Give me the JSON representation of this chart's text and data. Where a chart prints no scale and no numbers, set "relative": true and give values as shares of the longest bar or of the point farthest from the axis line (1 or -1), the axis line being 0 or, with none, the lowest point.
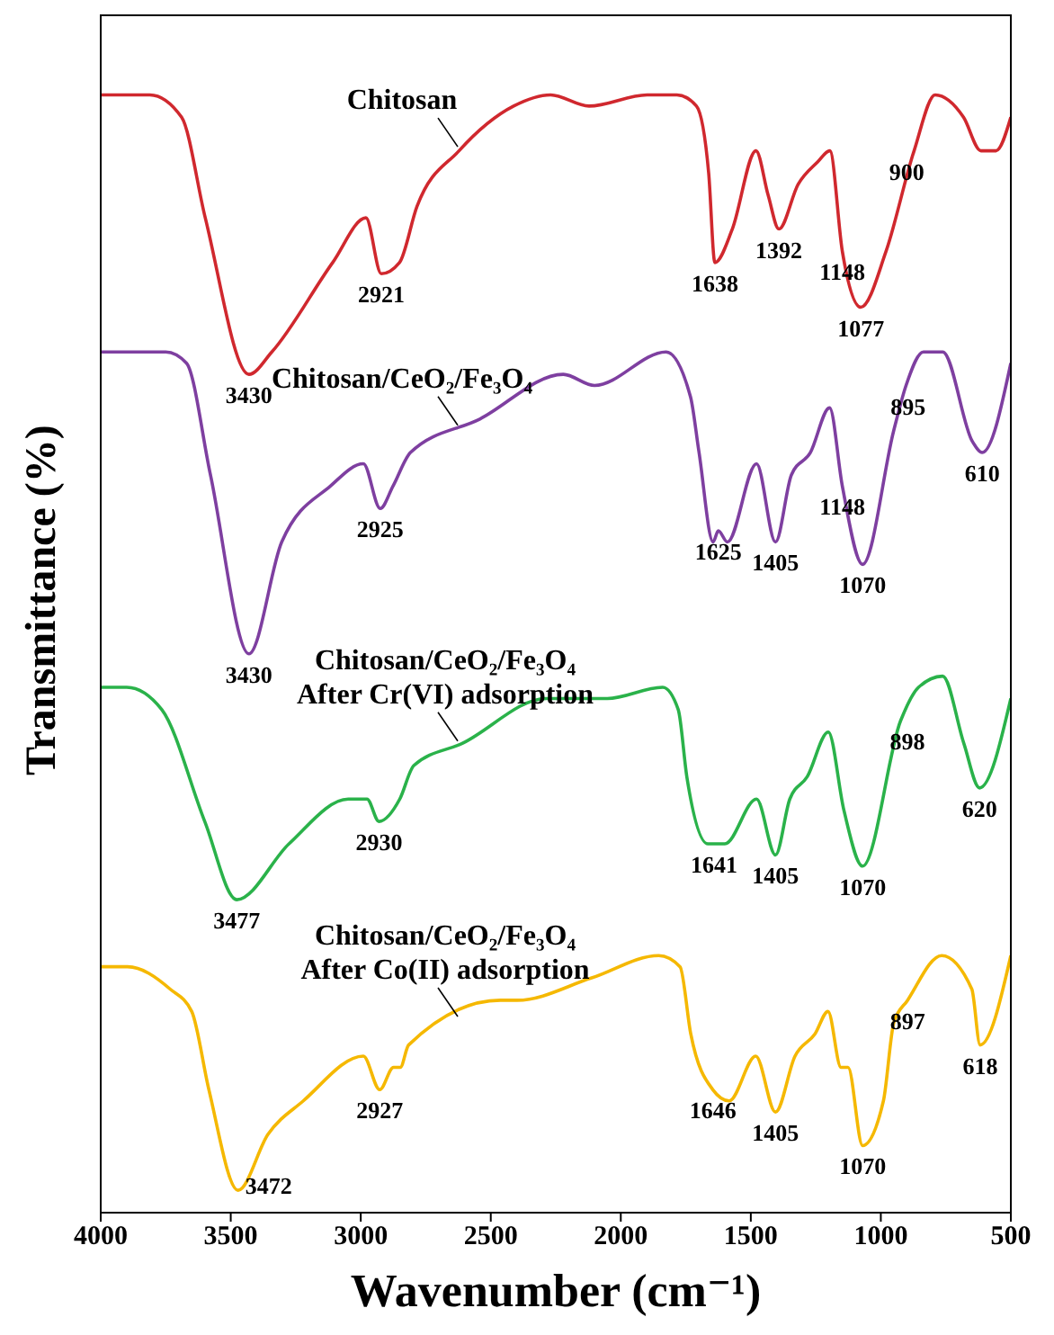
{
  "chart_data": {
    "type": "line",
    "relative": true,
    "xlabel": "Wavenumber (cm⁻¹)",
    "ylabel": "Transmittance (%)",
    "xlim": [
      4000,
      500
    ],
    "xticks": [
      4000,
      3500,
      3000,
      2500,
      2000,
      1500,
      1000,
      500
    ],
    "grid": false,
    "legend": false,
    "marker": "none",
    "line_style": "solid",
    "series": [
      {
        "name": "Chitosan",
        "color": "#d0282e",
        "x": [
          4000,
          3811,
          3689,
          3598,
          3430,
          3342,
          3108,
          2980,
          2921,
          2851,
          2784,
          2622,
          2412,
          2270,
          2122,
          1899,
          1784,
          1709,
          1662,
          1638,
          1571,
          1480,
          1433,
          1392,
          1318,
          1243,
          1196,
          1148,
          1077,
          980,
          872,
          791,
          682,
          615,
          557,
          500
        ],
        "values": [
          1.0,
          1.0,
          0.98,
          0.89,
          0.75,
          0.77,
          0.85,
          0.89,
          0.84,
          0.85,
          0.9,
          0.95,
          0.99,
          1.0,
          0.99,
          1.0,
          1.0,
          0.99,
          0.93,
          0.85,
          0.88,
          0.95,
          0.91,
          0.88,
          0.92,
          0.94,
          0.95,
          0.86,
          0.81,
          0.86,
          0.95,
          1.0,
          0.98,
          0.95,
          0.95,
          0.98
        ]
      },
      {
        "name": "Chitosan/CeO₂/Fe₃O₄",
        "color": "#7e3fa0",
        "x": [
          4000,
          3750,
          3670,
          3578,
          3430,
          3304,
          3117,
          2990,
          2925,
          2876,
          2809,
          2542,
          2221,
          2101,
          1826,
          1732,
          1699,
          1645,
          1625,
          1590,
          1478,
          1405,
          1344,
          1271,
          1197,
          1148,
          1070,
          950,
          903,
          836,
          762,
          648,
          610,
          500
        ],
        "values": [
          0.77,
          0.77,
          0.76,
          0.66,
          0.5,
          0.6,
          0.65,
          0.67,
          0.63,
          0.65,
          0.68,
          0.71,
          0.75,
          0.74,
          0.77,
          0.73,
          0.68,
          0.6,
          0.61,
          0.6,
          0.67,
          0.6,
          0.66,
          0.68,
          0.72,
          0.65,
          0.58,
          0.7,
          0.74,
          0.77,
          0.77,
          0.69,
          0.68,
          0.76
        ]
      },
      {
        "name": "Chitosan/CeO₂/Fe₃O₄\nAfter Cr(VI) adsorption",
        "color": "#2ab24a",
        "x": [
          4000,
          3900,
          3765,
          3600,
          3477,
          3276,
          3048,
          2976,
          2930,
          2850,
          2796,
          2608,
          2286,
          2052,
          1839,
          1779,
          1746,
          1665,
          1600,
          1478,
          1405,
          1350,
          1283,
          1202,
          1142,
          1070,
          924,
          855,
          762,
          681,
          620,
          500
        ],
        "values": [
          0.47,
          0.47,
          0.45,
          0.35,
          0.28,
          0.33,
          0.37,
          0.37,
          0.35,
          0.37,
          0.4,
          0.42,
          0.46,
          0.46,
          0.47,
          0.45,
          0.39,
          0.33,
          0.33,
          0.37,
          0.32,
          0.37,
          0.39,
          0.43,
          0.36,
          0.31,
          0.44,
          0.47,
          0.48,
          0.42,
          0.38,
          0.46
        ]
      },
      {
        "name": "Chitosan/CeO₂/Fe₃O₄\nAfter Co(II) adsorption",
        "color": "#f5b800",
        "x": [
          4000,
          3897,
          3733,
          3650,
          3584,
          3472,
          3357,
          3221,
          2990,
          2927,
          2874,
          2848,
          2816,
          2463,
          2398,
          2112,
          1854,
          1772,
          1731,
          1646,
          1583,
          1481,
          1405,
          1330,
          1253,
          1203,
          1153,
          1126,
          1070,
          990,
          950,
          897,
          766,
          650,
          618,
          500
        ],
        "values": [
          0.22,
          0.22,
          0.2,
          0.18,
          0.11,
          0.02,
          0.07,
          0.1,
          0.14,
          0.11,
          0.13,
          0.13,
          0.15,
          0.19,
          0.19,
          0.21,
          0.23,
          0.22,
          0.16,
          0.11,
          0.1,
          0.14,
          0.09,
          0.14,
          0.16,
          0.18,
          0.13,
          0.13,
          0.06,
          0.1,
          0.17,
          0.19,
          0.23,
          0.2,
          0.15,
          0.23
        ]
      }
    ],
    "annotations": [
      {
        "text": "3430",
        "x": 3430,
        "y": 0.75
      },
      {
        "text": "2921",
        "x": 2921,
        "y": 0.84
      },
      {
        "text": "1638",
        "x": 1638,
        "y": 0.85
      },
      {
        "text": "1392",
        "x": 1392,
        "y": 0.88
      },
      {
        "text": "1148",
        "x": 1148,
        "y": 0.86
      },
      {
        "text": "1077",
        "x": 1077,
        "y": 0.81
      },
      {
        "text": "900",
        "x": 900,
        "y": 0.95
      },
      {
        "text": "3430",
        "x": 3430,
        "y": 0.5
      },
      {
        "text": "2925",
        "x": 2925,
        "y": 0.63
      },
      {
        "text": "1625",
        "x": 1625,
        "y": 0.61
      },
      {
        "text": "1405",
        "x": 1405,
        "y": 0.6
      },
      {
        "text": "1148",
        "x": 1148,
        "y": 0.65
      },
      {
        "text": "1070",
        "x": 1070,
        "y": 0.58
      },
      {
        "text": "895",
        "x": 895,
        "y": 0.74
      },
      {
        "text": "610",
        "x": 610,
        "y": 0.68
      },
      {
        "text": "3477",
        "x": 3477,
        "y": 0.28
      },
      {
        "text": "2930",
        "x": 2930,
        "y": 0.35
      },
      {
        "text": "1641",
        "x": 1641,
        "y": 0.33
      },
      {
        "text": "1405",
        "x": 1405,
        "y": 0.32
      },
      {
        "text": "1070",
        "x": 1070,
        "y": 0.31
      },
      {
        "text": "898",
        "x": 898,
        "y": 0.44
      },
      {
        "text": "620",
        "x": 620,
        "y": 0.38
      },
      {
        "text": "3472",
        "x": 3472,
        "y": 0.02
      },
      {
        "text": "2927",
        "x": 2927,
        "y": 0.11
      },
      {
        "text": "1646",
        "x": 1646,
        "y": 0.11
      },
      {
        "text": "1405",
        "x": 1405,
        "y": 0.09
      },
      {
        "text": "1070",
        "x": 1070,
        "y": 0.06
      },
      {
        "text": "897",
        "x": 897,
        "y": 0.19
      },
      {
        "text": "618",
        "x": 618,
        "y": 0.15
      }
    ]
  }
}
